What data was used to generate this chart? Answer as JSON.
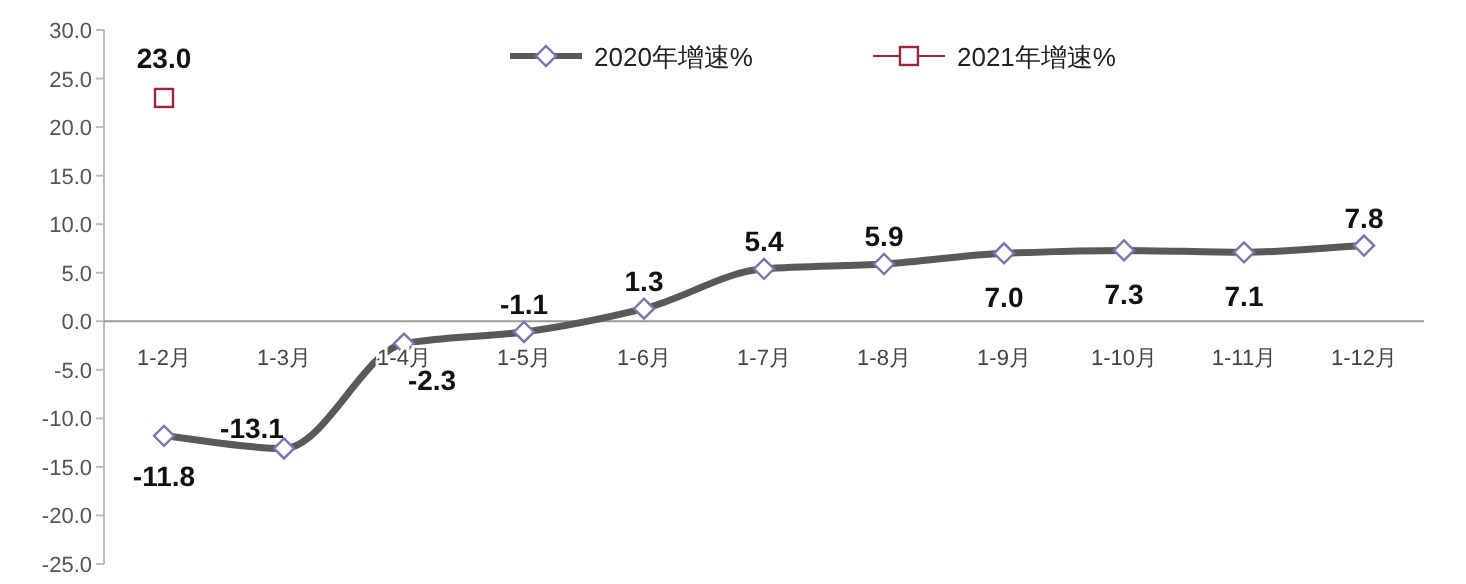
{
  "chart_data": {
    "type": "line",
    "categories": [
      "1-2月",
      "1-3月",
      "1-4月",
      "1-5月",
      "1-6月",
      "1-7月",
      "1-8月",
      "1-9月",
      "1-10月",
      "1-11月",
      "1-12月"
    ],
    "series": [
      {
        "name": "2020年增速%",
        "color": "#595959",
        "marker": "diamond",
        "values": [
          -11.8,
          -13.1,
          -2.3,
          -1.1,
          1.3,
          5.4,
          5.9,
          7.0,
          7.3,
          7.1,
          7.8
        ],
        "value_labels": [
          "-11.8",
          "-13.1",
          "-2.3",
          "-1.1",
          "1.3",
          "5.4",
          "5.9",
          "7.0",
          "7.3",
          "7.1",
          "7.8"
        ]
      },
      {
        "name": "2021年增速%",
        "type": "scatter",
        "color": "#a0243c",
        "marker": "square",
        "values": [
          23.0,
          null,
          null,
          null,
          null,
          null,
          null,
          null,
          null,
          null,
          null
        ],
        "value_labels": [
          "23.0",
          null,
          null,
          null,
          null,
          null,
          null,
          null,
          null,
          null,
          null
        ]
      }
    ],
    "ylim": [
      -25,
      30
    ],
    "yticks": [
      {
        "value": -25,
        "label": "-25.0"
      },
      {
        "value": -20,
        "label": "-20.0"
      },
      {
        "value": -15,
        "label": "-15.0"
      },
      {
        "value": -10,
        "label": "-10.0"
      },
      {
        "value": -5,
        "label": "-5.0"
      },
      {
        "value": 0,
        "label": "0.0"
      },
      {
        "value": 5,
        "label": "5.0"
      },
      {
        "value": 10,
        "label": "10.0"
      },
      {
        "value": 15,
        "label": "15.0"
      },
      {
        "value": 20,
        "label": "20.0"
      },
      {
        "value": 25,
        "label": "25.0"
      },
      {
        "value": 30,
        "label": "30.0"
      }
    ],
    "legend": "top",
    "grid": false
  }
}
